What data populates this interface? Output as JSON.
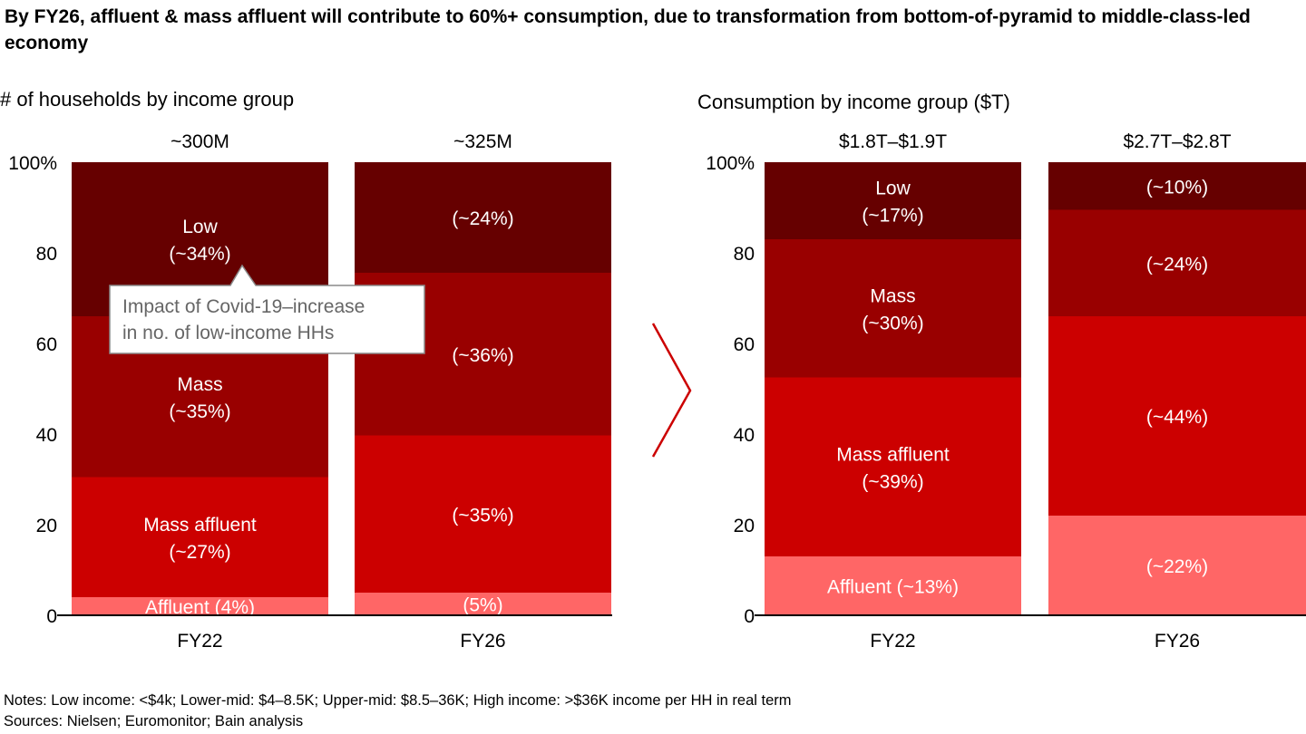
{
  "title": "By FY26, affluent & mass affluent will contribute to 60%+ consumption, due to transformation from bottom-of-pyramid to middle-class-led economy",
  "notes": "Notes: Low income: <$4k; Lower-mid: $4–8.5K; Upper-mid: $8.5–36K; High income: >$36K income per HH in real term",
  "sources": "Sources: Nielsen; Euromonitor; Bain analysis",
  "colors": {
    "low": "#660000",
    "mass": "#990000",
    "mass_affluent": "#cc0000",
    "affluent": "#ff6666",
    "arrow": "#cc0000"
  },
  "callout": "Impact of Covid-19–increase in no. of low-income HHs",
  "chart_data": [
    {
      "type": "bar",
      "stacked": true,
      "title": "# of households by income group",
      "categories": [
        "FY22",
        "FY26"
      ],
      "totals": [
        "~300M",
        "~325M"
      ],
      "ylim": [
        0,
        100
      ],
      "yticks": [
        "0",
        "20",
        "40",
        "60",
        "80",
        "100%"
      ],
      "series": [
        {
          "name": "Affluent",
          "key": "affluent",
          "values": [
            4,
            5
          ],
          "labels": [
            [
              "Affluent (4%)"
            ],
            [
              "(5%)"
            ]
          ]
        },
        {
          "name": "Mass affluent",
          "key": "mass_affluent",
          "values": [
            26.5,
            34.7
          ],
          "labels": [
            [
              "Mass affluent",
              "(~27%)"
            ],
            [
              "(~35%)"
            ]
          ]
        },
        {
          "name": "Mass",
          "key": "mass",
          "values": [
            35.5,
            35.9
          ],
          "labels": [
            [
              "Mass",
              "(~35%)"
            ],
            [
              "(~36%)"
            ]
          ]
        },
        {
          "name": "Low",
          "key": "low",
          "values": [
            34,
            24.4
          ],
          "labels": [
            [
              "Low",
              "(~34%)"
            ],
            [
              "(~24%)"
            ]
          ]
        }
      ]
    },
    {
      "type": "bar",
      "stacked": true,
      "title": "Consumption by income group ($T)",
      "categories": [
        "FY22",
        "FY26"
      ],
      "totals": [
        "$1.8T–$1.9T",
        "$2.7T–$2.8T"
      ],
      "ylim": [
        0,
        100
      ],
      "yticks": [
        "0",
        "20",
        "40",
        "60",
        "80",
        "100%"
      ],
      "series": [
        {
          "name": "Affluent",
          "key": "affluent",
          "values": [
            13,
            22
          ],
          "labels": [
            [
              "Affluent (~13%)"
            ],
            [
              "(~22%)"
            ]
          ]
        },
        {
          "name": "Mass affluent",
          "key": "mass_affluent",
          "values": [
            39.5,
            44
          ],
          "labels": [
            [
              "Mass affluent",
              "(~39%)"
            ],
            [
              "(~44%)"
            ]
          ]
        },
        {
          "name": "Mass",
          "key": "mass",
          "values": [
            30.5,
            23.5
          ],
          "labels": [
            [
              "Mass",
              "(~30%)"
            ],
            [
              "(~24%)"
            ]
          ]
        },
        {
          "name": "Low",
          "key": "low",
          "values": [
            17,
            10.5
          ],
          "labels": [
            [
              "Low",
              "(~17%)"
            ],
            [
              "(~10%)"
            ]
          ]
        }
      ]
    }
  ]
}
